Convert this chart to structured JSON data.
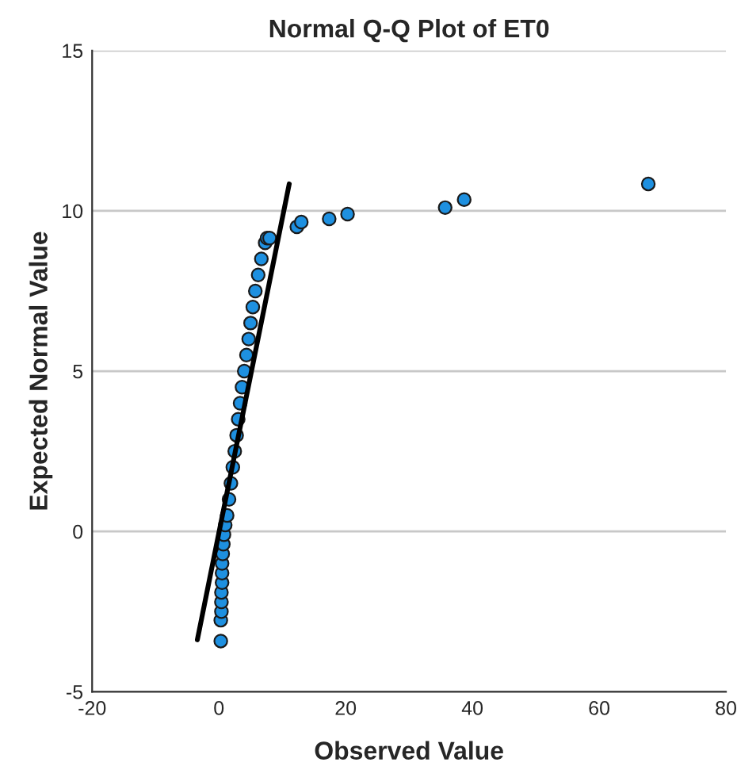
{
  "chart_data": {
    "type": "scatter",
    "title": "Normal Q-Q Plot of ET0",
    "xlabel": "Observed Value",
    "ylabel": "Expected Normal Value",
    "xlim": [
      -20,
      80
    ],
    "xticks": [
      -20,
      0,
      20,
      40,
      60,
      80
    ],
    "ylim": [
      -5,
      15
    ],
    "yticks": [
      -5,
      0,
      5,
      10,
      15
    ],
    "grid": "y",
    "series": [
      {
        "marker": "circle",
        "color": "#1e90e0",
        "x": [
          0.3,
          0.3,
          0.4,
          0.4,
          0.4,
          0.5,
          0.5,
          0.5,
          0.6,
          0.7,
          0.8,
          1.0,
          1.3,
          1.6,
          1.9,
          2.2,
          2.5,
          2.8,
          3.05,
          3.35,
          3.65,
          4.0,
          4.35,
          4.7,
          5.0,
          5.35,
          5.75,
          6.2,
          6.7,
          7.3,
          7.6,
          8.0,
          12.3,
          13,
          17.4,
          20.3,
          35.7,
          38.7,
          67.75
        ],
        "values": [
          -3.42,
          -2.77,
          -2.5,
          -2.2,
          -1.9,
          -1.6,
          -1.3,
          -1.0,
          -0.7,
          -0.4,
          -0.1,
          0.2,
          0.5,
          1.0,
          1.5,
          2.0,
          2.5,
          3.0,
          3.5,
          4.0,
          4.5,
          5.0,
          5.5,
          6.0,
          6.5,
          7.0,
          7.5,
          8.0,
          8.5,
          9.0,
          9.15,
          9.15,
          9.5,
          9.65,
          9.75,
          9.9,
          10.1,
          10.35,
          10.84
        ]
      },
      {
        "type": "line",
        "marker": "none",
        "color": "#000000",
        "line_style": "solid",
        "x": [
          -3.4,
          11.1
        ],
        "values": [
          -3.38,
          10.84
        ]
      }
    ]
  }
}
